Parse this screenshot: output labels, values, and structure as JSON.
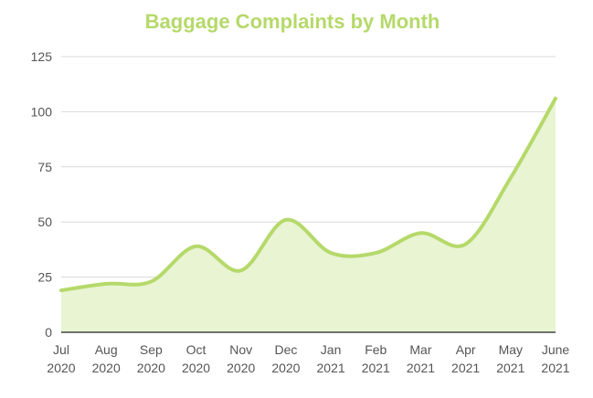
{
  "chart_data": {
    "type": "area",
    "title": "Baggage Complaints by Month",
    "xlabel": "",
    "ylabel": "",
    "categories": [
      [
        "Jul",
        "2020"
      ],
      [
        "Aug",
        "2020"
      ],
      [
        "Sep",
        "2020"
      ],
      [
        "Oct",
        "2020"
      ],
      [
        "Nov",
        "2020"
      ],
      [
        "Dec",
        "2020"
      ],
      [
        "Jan",
        "2021"
      ],
      [
        "Feb",
        "2021"
      ],
      [
        "Mar",
        "2021"
      ],
      [
        "Apr",
        "2021"
      ],
      [
        "May",
        "2021"
      ],
      [
        "June",
        "2021"
      ]
    ],
    "series": [
      {
        "values": [
          19,
          22,
          23,
          39,
          28,
          51,
          36,
          36,
          45,
          40,
          70,
          106
        ]
      }
    ],
    "ylim": [
      0,
      125
    ],
    "yticks": [
      0,
      25,
      50,
      75,
      100,
      125
    ],
    "grid": true,
    "legend": "none",
    "colors": {
      "line": "#b5d96a",
      "fill": "#e8f4d2",
      "title": "#b5d96a"
    }
  }
}
